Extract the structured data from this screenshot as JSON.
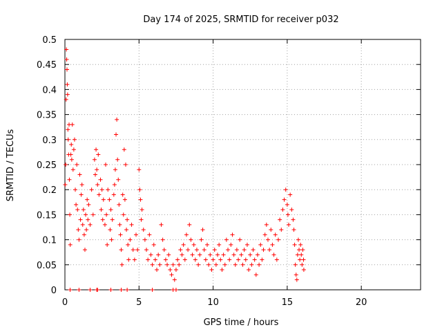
{
  "chart_data": {
    "type": "scatter",
    "title": "Day 174 of 2025, SRMTID for receiver p032",
    "xlabel": "GPS time / hours",
    "ylabel": "SRMTID / TECUs",
    "xlim": [
      0,
      24
    ],
    "ylim": [
      0,
      0.5
    ],
    "x_ticks": [
      0,
      5,
      10,
      15,
      20
    ],
    "y_ticks": [
      0,
      0.05,
      0.1,
      0.15,
      0.2,
      0.25,
      0.3,
      0.35,
      0.4,
      0.45,
      0.5
    ],
    "x_tick_labels": [
      "0",
      "5",
      "10",
      "15",
      "20"
    ],
    "y_tick_labels": [
      "0",
      "0.05",
      "0.1",
      "0.15",
      "0.2",
      "0.25",
      "0.3",
      "0.35",
      "0.4",
      "0.45",
      "0.5"
    ],
    "grid": true,
    "marker": "+",
    "color": "#ff0000",
    "series": [
      {
        "name": "SRMTID",
        "points": [
          [
            0.02,
            0.21
          ],
          [
            0.05,
            0.25
          ],
          [
            0.08,
            0.38
          ],
          [
            0.1,
            0.48
          ],
          [
            0.12,
            0.46
          ],
          [
            0.14,
            0.44
          ],
          [
            0.16,
            0.41
          ],
          [
            0.18,
            0.39
          ],
          [
            0.2,
            0.32
          ],
          [
            0.22,
            0.3
          ],
          [
            0.25,
            0.27
          ],
          [
            0.28,
            0.33
          ],
          [
            0.3,
            0.22
          ],
          [
            0.33,
            0.15
          ],
          [
            0.36,
            0.09
          ],
          [
            0.4,
            0.27
          ],
          [
            0.43,
            0.29
          ],
          [
            0.46,
            0.26
          ],
          [
            0.5,
            0.33
          ],
          [
            0.55,
            0.24
          ],
          [
            0.6,
            0.28
          ],
          [
            0.65,
            0.3
          ],
          [
            0.7,
            0.2
          ],
          [
            0.75,
            0.17
          ],
          [
            0.8,
            0.25
          ],
          [
            0.85,
            0.16
          ],
          [
            0.9,
            0.12
          ],
          [
            0.95,
            0.1
          ],
          [
            1.0,
            0.23
          ],
          [
            1.05,
            0.14
          ],
          [
            1.1,
            0.19
          ],
          [
            1.15,
            0.21
          ],
          [
            1.2,
            0.13
          ],
          [
            1.25,
            0.16
          ],
          [
            1.3,
            0.11
          ],
          [
            1.35,
            0.08
          ],
          [
            1.4,
            0.15
          ],
          [
            1.45,
            0.12
          ],
          [
            1.5,
            0.18
          ],
          [
            1.55,
            0.14
          ],
          [
            1.6,
            0.17
          ],
          [
            1.7,
            0.13
          ],
          [
            1.8,
            0.2
          ],
          [
            1.9,
            0.15
          ],
          [
            2.0,
            0.26
          ],
          [
            2.05,
            0.23
          ],
          [
            2.1,
            0.28
          ],
          [
            2.15,
            0.24
          ],
          [
            2.2,
            0.21
          ],
          [
            2.25,
            0.27
          ],
          [
            2.3,
            0.19
          ],
          [
            2.4,
            0.22
          ],
          [
            2.45,
            0.16
          ],
          [
            2.5,
            0.2
          ],
          [
            2.55,
            0.14
          ],
          [
            2.6,
            0.18
          ],
          [
            2.7,
            0.13
          ],
          [
            2.75,
            0.25
          ],
          [
            2.8,
            0.15
          ],
          [
            2.85,
            0.09
          ],
          [
            2.9,
            0.2
          ],
          [
            3.0,
            0.18
          ],
          [
            3.05,
            0.12
          ],
          [
            3.1,
            0.16
          ],
          [
            3.15,
            0.1
          ],
          [
            3.2,
            0.14
          ],
          [
            3.3,
            0.19
          ],
          [
            3.35,
            0.21
          ],
          [
            3.4,
            0.24
          ],
          [
            3.45,
            0.31
          ],
          [
            3.5,
            0.34
          ],
          [
            3.55,
            0.26
          ],
          [
            3.6,
            0.22
          ],
          [
            3.65,
            0.17
          ],
          [
            3.7,
            0.13
          ],
          [
            3.75,
            0.11
          ],
          [
            3.8,
            0.08
          ],
          [
            3.85,
            0.05
          ],
          [
            3.9,
            0.19
          ],
          [
            3.95,
            0.15
          ],
          [
            4.0,
            0.28
          ],
          [
            4.05,
            0.18
          ],
          [
            4.1,
            0.25
          ],
          [
            4.15,
            0.12
          ],
          [
            4.2,
            0.14
          ],
          [
            4.25,
            0.09
          ],
          [
            4.3,
            0.06
          ],
          [
            4.4,
            0.1
          ],
          [
            4.5,
            0.13
          ],
          [
            4.6,
            0.08
          ],
          [
            4.7,
            0.06
          ],
          [
            4.8,
            0.11
          ],
          [
            4.9,
            0.08
          ],
          [
            5.0,
            0.24
          ],
          [
            5.05,
            0.2
          ],
          [
            5.1,
            0.18
          ],
          [
            5.15,
            0.14
          ],
          [
            5.2,
            0.16
          ],
          [
            5.3,
            0.12
          ],
          [
            5.4,
            0.1
          ],
          [
            5.5,
            0.08
          ],
          [
            5.6,
            0.06
          ],
          [
            5.7,
            0.11
          ],
          [
            5.8,
            0.07
          ],
          [
            5.9,
            0.05
          ],
          [
            6.0,
            0.09
          ],
          [
            6.1,
            0.06
          ],
          [
            6.2,
            0.04
          ],
          [
            6.3,
            0.07
          ],
          [
            6.4,
            0.05
          ],
          [
            6.5,
            0.13
          ],
          [
            6.6,
            0.1
          ],
          [
            6.7,
            0.08
          ],
          [
            6.8,
            0.06
          ],
          [
            6.9,
            0.05
          ],
          [
            7.0,
            0.07
          ],
          [
            7.1,
            0.04
          ],
          [
            7.2,
            0.03
          ],
          [
            7.3,
            0.05
          ],
          [
            7.4,
            0.02
          ],
          [
            7.5,
            0.04
          ],
          [
            7.6,
            0.06
          ],
          [
            7.7,
            0.05
          ],
          [
            7.8,
            0.08
          ],
          [
            7.9,
            0.07
          ],
          [
            8.0,
            0.09
          ],
          [
            8.1,
            0.06
          ],
          [
            8.2,
            0.11
          ],
          [
            8.3,
            0.08
          ],
          [
            8.4,
            0.13
          ],
          [
            8.5,
            0.1
          ],
          [
            8.6,
            0.07
          ],
          [
            8.7,
            0.09
          ],
          [
            8.8,
            0.06
          ],
          [
            8.9,
            0.08
          ],
          [
            9.0,
            0.05
          ],
          [
            9.1,
            0.07
          ],
          [
            9.2,
            0.1
          ],
          [
            9.3,
            0.12
          ],
          [
            9.4,
            0.08
          ],
          [
            9.5,
            0.06
          ],
          [
            9.6,
            0.09
          ],
          [
            9.7,
            0.05
          ],
          [
            9.8,
            0.07
          ],
          [
            9.9,
            0.04
          ],
          [
            10.0,
            0.06
          ],
          [
            10.1,
            0.08
          ],
          [
            10.2,
            0.05
          ],
          [
            10.3,
            0.07
          ],
          [
            10.4,
            0.09
          ],
          [
            10.5,
            0.06
          ],
          [
            10.6,
            0.04
          ],
          [
            10.7,
            0.07
          ],
          [
            10.8,
            0.05
          ],
          [
            10.9,
            0.1
          ],
          [
            11.0,
            0.08
          ],
          [
            11.1,
            0.06
          ],
          [
            11.2,
            0.09
          ],
          [
            11.3,
            0.11
          ],
          [
            11.4,
            0.07
          ],
          [
            11.5,
            0.05
          ],
          [
            11.6,
            0.08
          ],
          [
            11.7,
            0.06
          ],
          [
            11.8,
            0.1
          ],
          [
            11.9,
            0.07
          ],
          [
            12.0,
            0.05
          ],
          [
            12.1,
            0.08
          ],
          [
            12.2,
            0.06
          ],
          [
            12.3,
            0.09
          ],
          [
            12.4,
            0.04
          ],
          [
            12.5,
            0.07
          ],
          [
            12.6,
            0.05
          ],
          [
            12.7,
            0.08
          ],
          [
            12.8,
            0.06
          ],
          [
            12.9,
            0.03
          ],
          [
            13.0,
            0.07
          ],
          [
            13.1,
            0.05
          ],
          [
            13.2,
            0.09
          ],
          [
            13.3,
            0.06
          ],
          [
            13.4,
            0.08
          ],
          [
            13.5,
            0.11
          ],
          [
            13.6,
            0.13
          ],
          [
            13.7,
            0.1
          ],
          [
            13.8,
            0.08
          ],
          [
            13.9,
            0.12
          ],
          [
            14.0,
            0.09
          ],
          [
            14.1,
            0.07
          ],
          [
            14.2,
            0.11
          ],
          [
            14.3,
            0.06
          ],
          [
            14.4,
            0.1
          ],
          [
            14.5,
            0.14
          ],
          [
            14.6,
            0.12
          ],
          [
            14.7,
            0.16
          ],
          [
            14.8,
            0.18
          ],
          [
            14.9,
            0.2
          ],
          [
            15.0,
            0.17
          ],
          [
            15.05,
            0.15
          ],
          [
            15.1,
            0.13
          ],
          [
            15.2,
            0.19
          ],
          [
            15.3,
            0.16
          ],
          [
            15.4,
            0.14
          ],
          [
            15.45,
            0.12
          ],
          [
            15.5,
            0.09
          ],
          [
            15.55,
            0.05
          ],
          [
            15.6,
            0.03
          ],
          [
            15.65,
            0.02
          ],
          [
            15.7,
            0.07
          ],
          [
            15.75,
            0.1
          ],
          [
            15.8,
            0.08
          ],
          [
            15.85,
            0.06
          ],
          [
            15.9,
            0.09
          ],
          [
            15.95,
            0.07
          ],
          [
            16.0,
            0.05
          ],
          [
            16.05,
            0.08
          ],
          [
            16.1,
            0.06
          ],
          [
            16.12,
            0.04
          ],
          [
            0.35,
            0.0
          ],
          [
            0.95,
            0.0
          ],
          [
            1.7,
            0.0
          ],
          [
            2.15,
            0.0
          ],
          [
            2.2,
            0.0
          ],
          [
            3.1,
            0.0
          ],
          [
            3.8,
            0.0
          ],
          [
            4.2,
            0.0
          ],
          [
            5.9,
            0.0
          ],
          [
            7.3,
            0.0
          ],
          [
            7.5,
            0.0
          ]
        ]
      }
    ]
  }
}
